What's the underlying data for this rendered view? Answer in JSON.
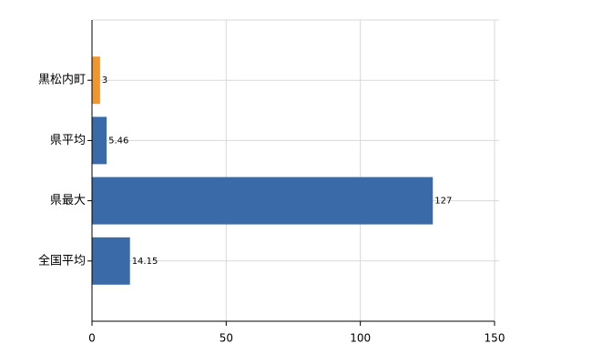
{
  "chart_data": {
    "type": "bar",
    "orientation": "horizontal",
    "categories": [
      "黒松内町",
      "県平均",
      "県最大",
      "全国平均"
    ],
    "values": [
      3,
      5.46,
      127,
      14.15
    ],
    "colors": [
      "#f0962e",
      "#3a6aa8",
      "#3a6aa8",
      "#3a6aa8"
    ],
    "xlim": [
      0,
      150
    ],
    "xticks": [
      0,
      50,
      100,
      150
    ],
    "grid": true
  }
}
